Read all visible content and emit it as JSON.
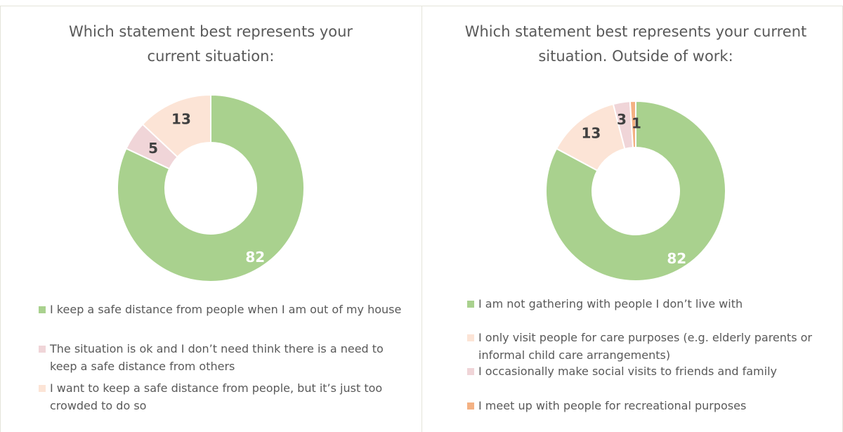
{
  "chart_data": [
    {
      "type": "donut",
      "title": "Which statement best represents your current situation:",
      "categories": [
        "I keep a safe distance from people when I am out of my house",
        "The situation is ok and I don’t need think there is a need to keep a safe distance from others",
        "I want to keep a safe distance from people, but it’s just too crowded to do so"
      ],
      "values": [
        82,
        5,
        13
      ],
      "colors": [
        "#a9d18e",
        "#f0d5d8",
        "#fce4d6"
      ]
    },
    {
      "type": "donut",
      "title": "Which statement best represents your current situation. Outside of work:",
      "categories": [
        "I am not gathering with people I don’t live with",
        "I only visit people for care purposes (e.g. elderly parents or informal child care arrangements)",
        "I occasionally make social visits to friends and family",
        "I meet up with people for recreational purposes"
      ],
      "values": [
        82,
        13,
        3,
        1
      ],
      "colors": [
        "#a9d18e",
        "#fce4d6",
        "#f0d5d8",
        "#f4b183"
      ]
    }
  ]
}
